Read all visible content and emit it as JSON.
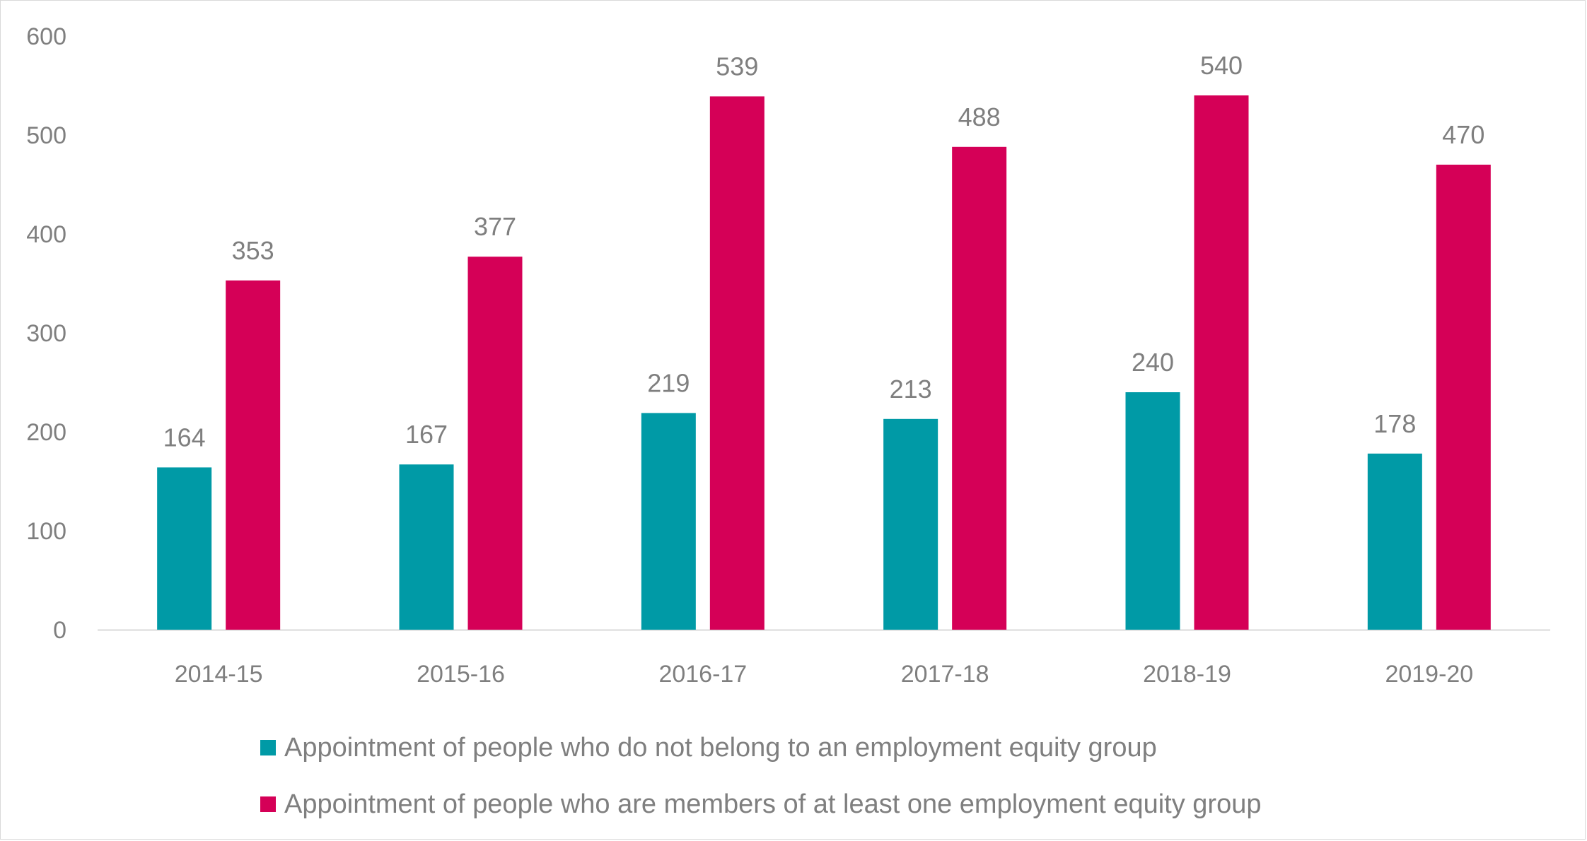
{
  "chart_data": {
    "type": "bar",
    "categories": [
      "2014-15",
      "2015-16",
      "2016-17",
      "2017-18",
      "2018-19",
      "2019-20"
    ],
    "series": [
      {
        "name": "Appointment of people who do not belong to an employment equity group",
        "color": "#009aa6",
        "values": [
          164,
          167,
          219,
          213,
          240,
          178
        ]
      },
      {
        "name": "Appointment of people who are members of at least one employment equity group",
        "color": "#d50057",
        "values": [
          353,
          377,
          539,
          488,
          540,
          470
        ]
      }
    ],
    "ylim": [
      0,
      600
    ],
    "yticks": [
      0,
      100,
      200,
      300,
      400,
      500,
      600
    ],
    "data_labels": true,
    "grid": false,
    "legend_position": "bottom"
  }
}
